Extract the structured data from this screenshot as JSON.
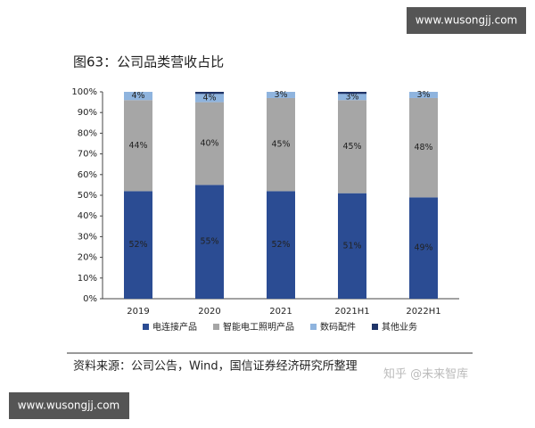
{
  "chart_data": {
    "type": "stacked_bar",
    "title": "图63：公司品类营收占比",
    "source": "资料来源：公司公告，Wind，国信证券经济研究所整理",
    "categories": [
      "2019",
      "2020",
      "2021",
      "2021H1",
      "2022H1"
    ],
    "series": [
      {
        "name": "电连接产品",
        "color": "#2b4c93",
        "values": [
          52,
          55,
          52,
          51,
          49
        ],
        "value_labels": [
          "52%",
          "55%",
          "52%",
          "51%",
          "49%"
        ]
      },
      {
        "name": "智能电工照明产品",
        "color": "#a6a6a6",
        "values": [
          44,
          40,
          45,
          45,
          48
        ],
        "value_labels": [
          "44%",
          "40%",
          "45%",
          "45%",
          "48%"
        ]
      },
      {
        "name": "数码配件",
        "color": "#8fb4de",
        "values": [
          4,
          4,
          3,
          3,
          3
        ],
        "value_labels": [
          "4%",
          "4%",
          "3%",
          "3%",
          "3%"
        ]
      },
      {
        "name": "其他业务",
        "color": "#1f3468",
        "values": [
          0,
          1,
          0,
          1,
          0
        ]
      }
    ],
    "ylim": [
      0,
      100
    ],
    "yticks": [
      {
        "value": 0,
        "label": "0%"
      },
      {
        "value": 10,
        "label": "10%"
      },
      {
        "value": 20,
        "label": "20%"
      },
      {
        "value": 30,
        "label": "30%"
      },
      {
        "value": 40,
        "label": "40%"
      },
      {
        "value": 50,
        "label": "50%"
      },
      {
        "value": 60,
        "label": "60%"
      },
      {
        "value": 70,
        "label": "70%"
      },
      {
        "value": 80,
        "label": "80%"
      },
      {
        "value": 90,
        "label": "90%"
      },
      {
        "value": 100,
        "label": "100%"
      }
    ],
    "legend": "bottom"
  },
  "watermarks": [
    "www.wusongjj.com",
    "www.wusongjj.com",
    "知乎 @未来智库"
  ]
}
